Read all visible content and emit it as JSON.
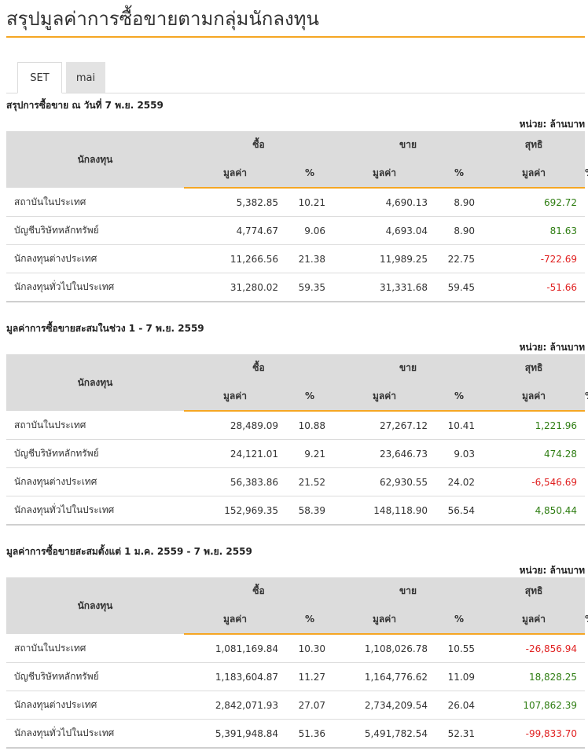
{
  "page": {
    "title": "สรุปมูลค่าการซื้อขายตามกลุ่มนักลงทุน"
  },
  "tabs": [
    {
      "label": "SET",
      "active": true
    },
    {
      "label": "mai",
      "active": false
    }
  ],
  "colors": {
    "accent": "#f5a623",
    "positive": "#2e7d12",
    "negative": "#e02020",
    "header_bg": "#dcdcdc"
  },
  "table_headers": {
    "investor": "นักลงทุน",
    "buy": "ซื้อ",
    "sell": "ขาย",
    "net": "สุทธิ",
    "value": "มูลค่า",
    "percent": "%"
  },
  "sections": [
    {
      "title": "สรุปการซื้อขาย ณ วันที่ 7 พ.ย. 2559",
      "unit": "หน่วย: ล้านบาท",
      "rows": [
        {
          "investor": "สถาบันในประเทศ",
          "buy_value": "5,382.85",
          "buy_pct": "10.21",
          "sell_value": "4,690.13",
          "sell_pct": "8.90",
          "net_value": "692.72",
          "net_pct": "-"
        },
        {
          "investor": "บัญชีบริษัทหลักทรัพย์",
          "buy_value": "4,774.67",
          "buy_pct": "9.06",
          "sell_value": "4,693.04",
          "sell_pct": "8.90",
          "net_value": "81.63",
          "net_pct": "-"
        },
        {
          "investor": "นักลงทุนต่างประเทศ",
          "buy_value": "11,266.56",
          "buy_pct": "21.38",
          "sell_value": "11,989.25",
          "sell_pct": "22.75",
          "net_value": "-722.69",
          "net_pct": "-"
        },
        {
          "investor": "นักลงทุนทั่วไปในประเทศ",
          "buy_value": "31,280.02",
          "buy_pct": "59.35",
          "sell_value": "31,331.68",
          "sell_pct": "59.45",
          "net_value": "-51.66",
          "net_pct": "-"
        }
      ]
    },
    {
      "title": "มูลค่าการซื้อขายสะสมในช่วง 1 - 7 พ.ย. 2559",
      "unit": "หน่วย: ล้านบาท",
      "rows": [
        {
          "investor": "สถาบันในประเทศ",
          "buy_value": "28,489.09",
          "buy_pct": "10.88",
          "sell_value": "27,267.12",
          "sell_pct": "10.41",
          "net_value": "1,221.96",
          "net_pct": "-"
        },
        {
          "investor": "บัญชีบริษัทหลักทรัพย์",
          "buy_value": "24,121.01",
          "buy_pct": "9.21",
          "sell_value": "23,646.73",
          "sell_pct": "9.03",
          "net_value": "474.28",
          "net_pct": "-"
        },
        {
          "investor": "นักลงทุนต่างประเทศ",
          "buy_value": "56,383.86",
          "buy_pct": "21.52",
          "sell_value": "62,930.55",
          "sell_pct": "24.02",
          "net_value": "-6,546.69",
          "net_pct": "-"
        },
        {
          "investor": "นักลงทุนทั่วไปในประเทศ",
          "buy_value": "152,969.35",
          "buy_pct": "58.39",
          "sell_value": "148,118.90",
          "sell_pct": "56.54",
          "net_value": "4,850.44",
          "net_pct": "-"
        }
      ]
    },
    {
      "title": "มูลค่าการซื้อขายสะสมตั้งแต่ 1 ม.ค. 2559 - 7 พ.ย. 2559",
      "unit": "หน่วย: ล้านบาท",
      "rows": [
        {
          "investor": "สถาบันในประเทศ",
          "buy_value": "1,081,169.84",
          "buy_pct": "10.30",
          "sell_value": "1,108,026.78",
          "sell_pct": "10.55",
          "net_value": "-26,856.94",
          "net_pct": "-"
        },
        {
          "investor": "บัญชีบริษัทหลักทรัพย์",
          "buy_value": "1,183,604.87",
          "buy_pct": "11.27",
          "sell_value": "1,164,776.62",
          "sell_pct": "11.09",
          "net_value": "18,828.25",
          "net_pct": "-"
        },
        {
          "investor": "นักลงทุนต่างประเทศ",
          "buy_value": "2,842,071.93",
          "buy_pct": "27.07",
          "sell_value": "2,734,209.54",
          "sell_pct": "26.04",
          "net_value": "107,862.39",
          "net_pct": "-"
        },
        {
          "investor": "นักลงทุนทั่วไปในประเทศ",
          "buy_value": "5,391,948.84",
          "buy_pct": "51.36",
          "sell_value": "5,491,782.54",
          "sell_pct": "52.31",
          "net_value": "-99,833.70",
          "net_pct": "-"
        }
      ]
    }
  ]
}
